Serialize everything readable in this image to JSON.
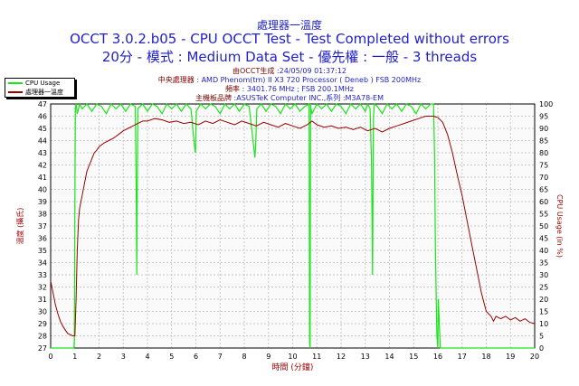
{
  "title": {
    "line1": "處理器一溫度",
    "line2": "OCCT 3.0.2.b05 - CPU OCCT Test - Test Completed without errors",
    "line3": "20分 - 模式 : Medium Data Set - 優先權 : 一般 - 3 threads"
  },
  "info": [
    {
      "key": "由OCCT生成",
      "value": " :24/05/09 01:37:12"
    },
    {
      "key": "中央處理器",
      "value": " : AMD Phenom(tm) II X3 720 Processor ( Deneb ) FSB 200MHz"
    },
    {
      "key": "頻率",
      "value": " : 3401.76 MHz ; FSB 200.1MHz"
    },
    {
      "key": "主機板品牌",
      "value": " :ASUSTeK Computer INC.,系列 :M3A78-EM"
    }
  ],
  "colors": {
    "temperature": "#990000",
    "cpu_usage": "#19e619",
    "grid": "#c8c8c8",
    "plot_bg": "#fafafa",
    "title": "#1f1fc8",
    "label": "#990000"
  },
  "chart_data": {
    "type": "line",
    "xlabel": "時間 (分鐘)",
    "ylabel_left": "溫度 (攝氏)",
    "ylabel_right": "CPU Usage (in %)",
    "xlim": [
      0,
      20
    ],
    "ylim_left": [
      27,
      47
    ],
    "ylim_right": [
      0,
      100
    ],
    "x_ticks": [
      "0",
      "1",
      "2",
      "3",
      "4",
      "5",
      "6",
      "7",
      "8",
      "9",
      "10",
      "11",
      "12",
      "13",
      "14",
      "15",
      "16",
      "17",
      "18",
      "19",
      "20"
    ],
    "y_left_ticks": [
      "27",
      "28",
      "29",
      "30",
      "31",
      "32",
      "33",
      "34",
      "35",
      "36",
      "37",
      "38",
      "39",
      "40",
      "41",
      "42",
      "43",
      "44",
      "45",
      "46",
      "47"
    ],
    "y_right_ticks": [
      "0",
      "5",
      "10",
      "15",
      "20",
      "25",
      "30",
      "35",
      "40",
      "45",
      "50",
      "55",
      "60",
      "65",
      "70",
      "75",
      "80",
      "85",
      "90",
      "95",
      "100"
    ],
    "grid": true,
    "legend_position": "top-left",
    "series": [
      {
        "name": "CPU Usage",
        "axis": "right",
        "x": [
          0,
          0.96,
          0.98,
          1.0,
          1.02,
          1.05,
          1.1,
          1.2,
          1.3,
          1.5,
          1.7,
          1.9,
          2.1,
          2.3,
          2.5,
          2.7,
          2.9,
          3.1,
          3.3,
          3.5,
          3.54,
          3.56,
          3.6,
          3.8,
          4.0,
          4.2,
          4.4,
          4.6,
          4.8,
          5.0,
          5.2,
          5.4,
          5.6,
          5.8,
          5.94,
          5.98,
          6.02,
          6.2,
          6.4,
          6.6,
          6.8,
          7.0,
          7.2,
          7.4,
          7.6,
          7.8,
          8.0,
          8.2,
          8.44,
          8.48,
          8.52,
          8.7,
          8.9,
          9.1,
          9.3,
          9.5,
          9.7,
          9.9,
          10.1,
          10.3,
          10.5,
          10.68,
          10.7,
          10.72,
          10.74,
          10.76,
          10.8,
          11.0,
          11.2,
          11.4,
          11.6,
          11.8,
          12.0,
          12.2,
          12.4,
          12.6,
          12.8,
          13.0,
          13.1,
          13.2,
          13.26,
          13.3,
          13.34,
          13.38,
          13.5,
          13.7,
          13.9,
          14.1,
          14.3,
          14.5,
          14.7,
          14.9,
          15.1,
          15.3,
          15.5,
          15.7,
          15.82,
          15.86,
          15.9,
          15.96,
          16.0,
          16.02,
          16.1,
          16.5,
          17,
          17.5,
          18,
          18.5,
          19,
          19.5,
          20
        ],
        "y": [
          0,
          0,
          3,
          60,
          98,
          100,
          96,
          100,
          98,
          100,
          97,
          100,
          99,
          96,
          100,
          98,
          100,
          97,
          100,
          99,
          60,
          30,
          98,
          100,
          97,
          100,
          99,
          96,
          100,
          98,
          100,
          97,
          100,
          98,
          83,
          80,
          97,
          100,
          98,
          100,
          99,
          96,
          100,
          98,
          100,
          97,
          100,
          99,
          78,
          85,
          98,
          100,
          97,
          100,
          99,
          96,
          100,
          98,
          100,
          97,
          99,
          100,
          2,
          0,
          100,
          98,
          96,
          100,
          98,
          100,
          97,
          100,
          99,
          96,
          100,
          98,
          100,
          97,
          100,
          98,
          75,
          30,
          95,
          100,
          99,
          96,
          100,
          98,
          100,
          97,
          100,
          99,
          96,
          100,
          98,
          100,
          100,
          80,
          40,
          5,
          0,
          20,
          0,
          0,
          0,
          0,
          0,
          0,
          0,
          0,
          0
        ]
      },
      {
        "name": "處理器一溫度",
        "axis": "left",
        "x": [
          0,
          0.1,
          0.2,
          0.3,
          0.4,
          0.5,
          0.6,
          0.7,
          0.8,
          0.9,
          1.0,
          1.05,
          1.1,
          1.15,
          1.2,
          1.3,
          1.4,
          1.5,
          1.6,
          1.7,
          1.8,
          1.9,
          2.0,
          2.2,
          2.4,
          2.6,
          2.8,
          3.0,
          3.2,
          3.4,
          3.6,
          3.8,
          4.0,
          4.3,
          4.6,
          4.9,
          5.2,
          5.5,
          5.8,
          6.1,
          6.4,
          6.7,
          7.0,
          7.3,
          7.6,
          7.9,
          8.2,
          8.5,
          8.8,
          9.1,
          9.4,
          9.7,
          10.0,
          10.3,
          10.6,
          10.8,
          11.0,
          11.3,
          11.6,
          11.9,
          12.2,
          12.5,
          12.8,
          13.1,
          13.4,
          13.7,
          14.0,
          14.3,
          14.6,
          14.9,
          15.2,
          15.5,
          15.8,
          16.0,
          16.2,
          16.4,
          16.6,
          16.8,
          17.0,
          17.2,
          17.4,
          17.6,
          17.8,
          18.0,
          18.2,
          18.3,
          18.4,
          18.6,
          18.8,
          19.0,
          19.2,
          19.4,
          19.6,
          19.8,
          20.0
        ],
        "y": [
          32.5,
          31.5,
          30.5,
          29.8,
          29.2,
          28.8,
          28.5,
          28.2,
          28.1,
          28.0,
          28.0,
          31.0,
          35.0,
          37.5,
          38.5,
          39.5,
          40.5,
          41.5,
          42.0,
          42.5,
          43.0,
          43.2,
          43.5,
          43.8,
          44.0,
          44.2,
          44.5,
          44.8,
          45.0,
          45.2,
          45.4,
          45.6,
          45.6,
          45.8,
          45.7,
          45.5,
          45.6,
          45.4,
          45.5,
          45.3,
          45.6,
          45.4,
          45.7,
          45.5,
          45.3,
          45.6,
          45.4,
          45.2,
          45.5,
          45.3,
          45.1,
          45.4,
          45.2,
          45.0,
          45.3,
          45.6,
          45.3,
          45.1,
          45.2,
          45.0,
          45.1,
          44.9,
          45.1,
          44.8,
          45.0,
          44.7,
          45.0,
          45.2,
          45.4,
          45.6,
          45.8,
          46.0,
          46.0,
          45.9,
          45.5,
          44.5,
          43.0,
          41.2,
          39.5,
          37.5,
          35.5,
          33.5,
          31.5,
          30.0,
          29.6,
          29.2,
          29.6,
          29.4,
          29.6,
          29.3,
          29.5,
          29.2,
          29.4,
          29.1,
          29.0
        ]
      }
    ]
  }
}
